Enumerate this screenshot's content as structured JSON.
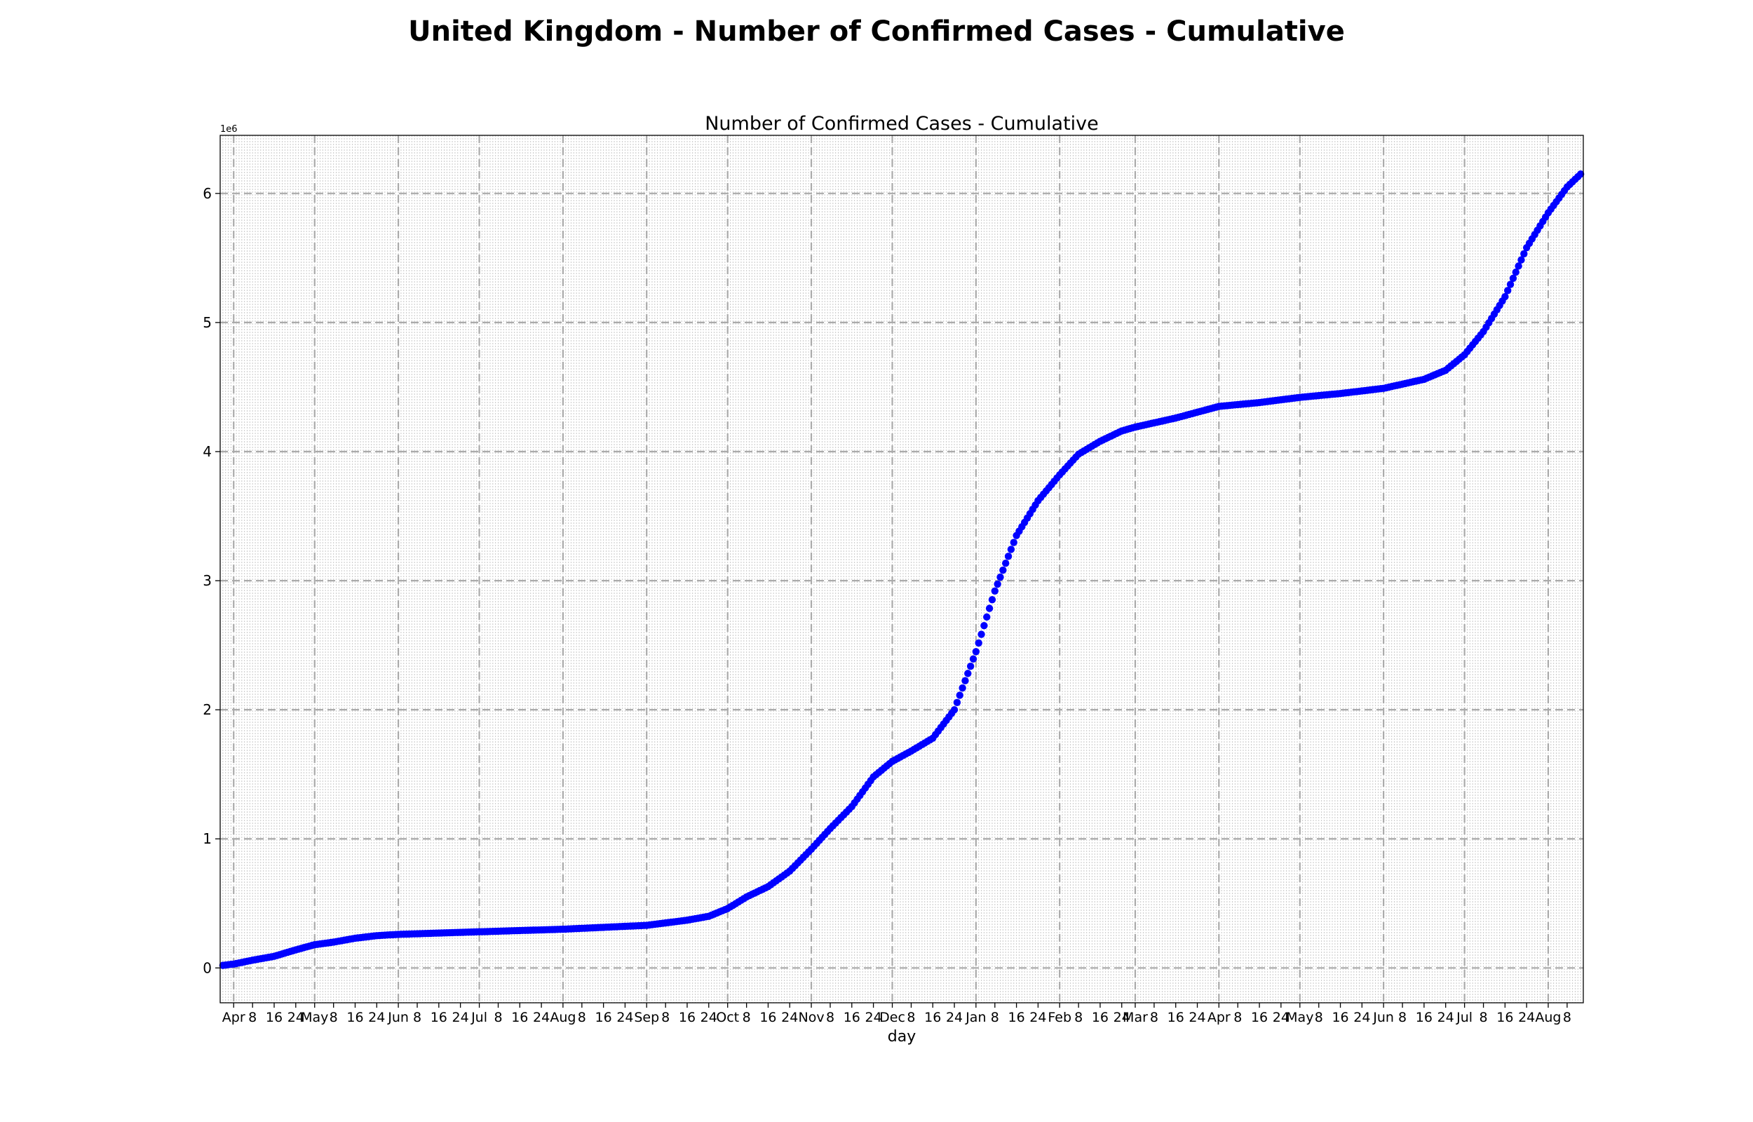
{
  "figure_title": "United Kingdom - Number of Confirmed Cases - Cumulative",
  "chart_data": {
    "type": "scatter",
    "title": "Number of Confirmed Cases - Cumulative",
    "xlabel": "day",
    "ylabel": "",
    "y_offset_label": "1e6",
    "x_start": "2020-03-28",
    "x_end": "2021-08-13",
    "xlim": [
      "2020-03-27",
      "2021-08-14"
    ],
    "ylim": [
      -0.27,
      6.45
    ],
    "y_ticks": [
      0,
      1,
      2,
      3,
      4,
      5,
      6
    ],
    "y_tick_labels": [
      "0",
      "1",
      "2",
      "3",
      "4",
      "5",
      "6"
    ],
    "x_tick_labels": [
      {
        "date": "2020-04-01",
        "label": "Apr"
      },
      {
        "date": "2020-04-08",
        "label": "8"
      },
      {
        "date": "2020-04-16",
        "label": "16"
      },
      {
        "date": "2020-04-24",
        "label": "24"
      },
      {
        "date": "2020-05-01",
        "label": "May"
      },
      {
        "date": "2020-05-08",
        "label": "8"
      },
      {
        "date": "2020-05-16",
        "label": "16"
      },
      {
        "date": "2020-05-24",
        "label": "24"
      },
      {
        "date": "2020-06-01",
        "label": "Jun"
      },
      {
        "date": "2020-06-08",
        "label": "8"
      },
      {
        "date": "2020-06-16",
        "label": "16"
      },
      {
        "date": "2020-06-24",
        "label": "24"
      },
      {
        "date": "2020-07-01",
        "label": "Jul"
      },
      {
        "date": "2020-07-08",
        "label": "8"
      },
      {
        "date": "2020-07-16",
        "label": "16"
      },
      {
        "date": "2020-07-24",
        "label": "24"
      },
      {
        "date": "2020-08-01",
        "label": "Aug"
      },
      {
        "date": "2020-08-08",
        "label": "8"
      },
      {
        "date": "2020-08-16",
        "label": "16"
      },
      {
        "date": "2020-08-24",
        "label": "24"
      },
      {
        "date": "2020-09-01",
        "label": "Sep"
      },
      {
        "date": "2020-09-08",
        "label": "8"
      },
      {
        "date": "2020-09-16",
        "label": "16"
      },
      {
        "date": "2020-09-24",
        "label": "24"
      },
      {
        "date": "2020-10-01",
        "label": "Oct"
      },
      {
        "date": "2020-10-08",
        "label": "8"
      },
      {
        "date": "2020-10-16",
        "label": "16"
      },
      {
        "date": "2020-10-24",
        "label": "24"
      },
      {
        "date": "2020-11-01",
        "label": "Nov"
      },
      {
        "date": "2020-11-08",
        "label": "8"
      },
      {
        "date": "2020-11-16",
        "label": "16"
      },
      {
        "date": "2020-11-24",
        "label": "24"
      },
      {
        "date": "2020-12-01",
        "label": "Dec"
      },
      {
        "date": "2020-12-08",
        "label": "8"
      },
      {
        "date": "2020-12-16",
        "label": "16"
      },
      {
        "date": "2020-12-24",
        "label": "24"
      },
      {
        "date": "2021-01-01",
        "label": "Jan"
      },
      {
        "date": "2021-01-08",
        "label": "8"
      },
      {
        "date": "2021-01-16",
        "label": "16"
      },
      {
        "date": "2021-01-24",
        "label": "24"
      },
      {
        "date": "2021-02-01",
        "label": "Feb"
      },
      {
        "date": "2021-02-08",
        "label": "8"
      },
      {
        "date": "2021-02-16",
        "label": "16"
      },
      {
        "date": "2021-02-24",
        "label": "24"
      },
      {
        "date": "2021-03-01",
        "label": "Mar"
      },
      {
        "date": "2021-03-08",
        "label": "8"
      },
      {
        "date": "2021-03-16",
        "label": "16"
      },
      {
        "date": "2021-03-24",
        "label": "24"
      },
      {
        "date": "2021-04-01",
        "label": "Apr"
      },
      {
        "date": "2021-04-08",
        "label": "8"
      },
      {
        "date": "2021-04-16",
        "label": "16"
      },
      {
        "date": "2021-04-24",
        "label": "24"
      },
      {
        "date": "2021-05-01",
        "label": "May"
      },
      {
        "date": "2021-05-08",
        "label": "8"
      },
      {
        "date": "2021-05-16",
        "label": "16"
      },
      {
        "date": "2021-05-24",
        "label": "24"
      },
      {
        "date": "2021-06-01",
        "label": "Jun"
      },
      {
        "date": "2021-06-08",
        "label": "8"
      },
      {
        "date": "2021-06-16",
        "label": "16"
      },
      {
        "date": "2021-06-24",
        "label": "24"
      },
      {
        "date": "2021-07-01",
        "label": "Jul"
      },
      {
        "date": "2021-07-08",
        "label": "8"
      },
      {
        "date": "2021-07-16",
        "label": "16"
      },
      {
        "date": "2021-07-24",
        "label": "24"
      },
      {
        "date": "2021-08-01",
        "label": "Aug"
      },
      {
        "date": "2021-08-08",
        "label": "8"
      }
    ],
    "grid": true,
    "series": [
      {
        "color": "#0000ff",
        "marker": "circle",
        "anchor_points": [
          [
            "2020-03-28",
            0.02
          ],
          [
            "2020-04-01",
            0.03
          ],
          [
            "2020-04-08",
            0.06
          ],
          [
            "2020-04-16",
            0.09
          ],
          [
            "2020-04-24",
            0.14
          ],
          [
            "2020-05-01",
            0.18
          ],
          [
            "2020-05-08",
            0.2
          ],
          [
            "2020-05-16",
            0.23
          ],
          [
            "2020-05-24",
            0.25
          ],
          [
            "2020-06-01",
            0.26
          ],
          [
            "2020-06-16",
            0.27
          ],
          [
            "2020-07-01",
            0.28
          ],
          [
            "2020-08-01",
            0.3
          ],
          [
            "2020-09-01",
            0.33
          ],
          [
            "2020-09-16",
            0.37
          ],
          [
            "2020-09-24",
            0.4
          ],
          [
            "2020-10-01",
            0.46
          ],
          [
            "2020-10-08",
            0.55
          ],
          [
            "2020-10-16",
            0.63
          ],
          [
            "2020-10-24",
            0.75
          ],
          [
            "2020-11-01",
            0.92
          ],
          [
            "2020-11-08",
            1.08
          ],
          [
            "2020-11-16",
            1.25
          ],
          [
            "2020-11-24",
            1.48
          ],
          [
            "2020-12-01",
            1.6
          ],
          [
            "2020-12-08",
            1.68
          ],
          [
            "2020-12-16",
            1.78
          ],
          [
            "2020-12-24",
            2.0
          ],
          [
            "2021-01-01",
            2.45
          ],
          [
            "2021-01-08",
            2.92
          ],
          [
            "2021-01-16",
            3.35
          ],
          [
            "2021-01-24",
            3.62
          ],
          [
            "2021-02-01",
            3.82
          ],
          [
            "2021-02-08",
            3.98
          ],
          [
            "2021-02-16",
            4.08
          ],
          [
            "2021-02-24",
            4.16
          ],
          [
            "2021-03-01",
            4.19
          ],
          [
            "2021-03-16",
            4.26
          ],
          [
            "2021-04-01",
            4.35
          ],
          [
            "2021-04-16",
            4.38
          ],
          [
            "2021-05-01",
            4.42
          ],
          [
            "2021-05-16",
            4.45
          ],
          [
            "2021-06-01",
            4.49
          ],
          [
            "2021-06-16",
            4.56
          ],
          [
            "2021-06-24",
            4.63
          ],
          [
            "2021-07-01",
            4.75
          ],
          [
            "2021-07-08",
            4.93
          ],
          [
            "2021-07-16",
            5.2
          ],
          [
            "2021-07-24",
            5.58
          ],
          [
            "2021-08-01",
            5.85
          ],
          [
            "2021-08-08",
            6.05
          ],
          [
            "2021-08-13",
            6.15
          ]
        ]
      }
    ]
  }
}
